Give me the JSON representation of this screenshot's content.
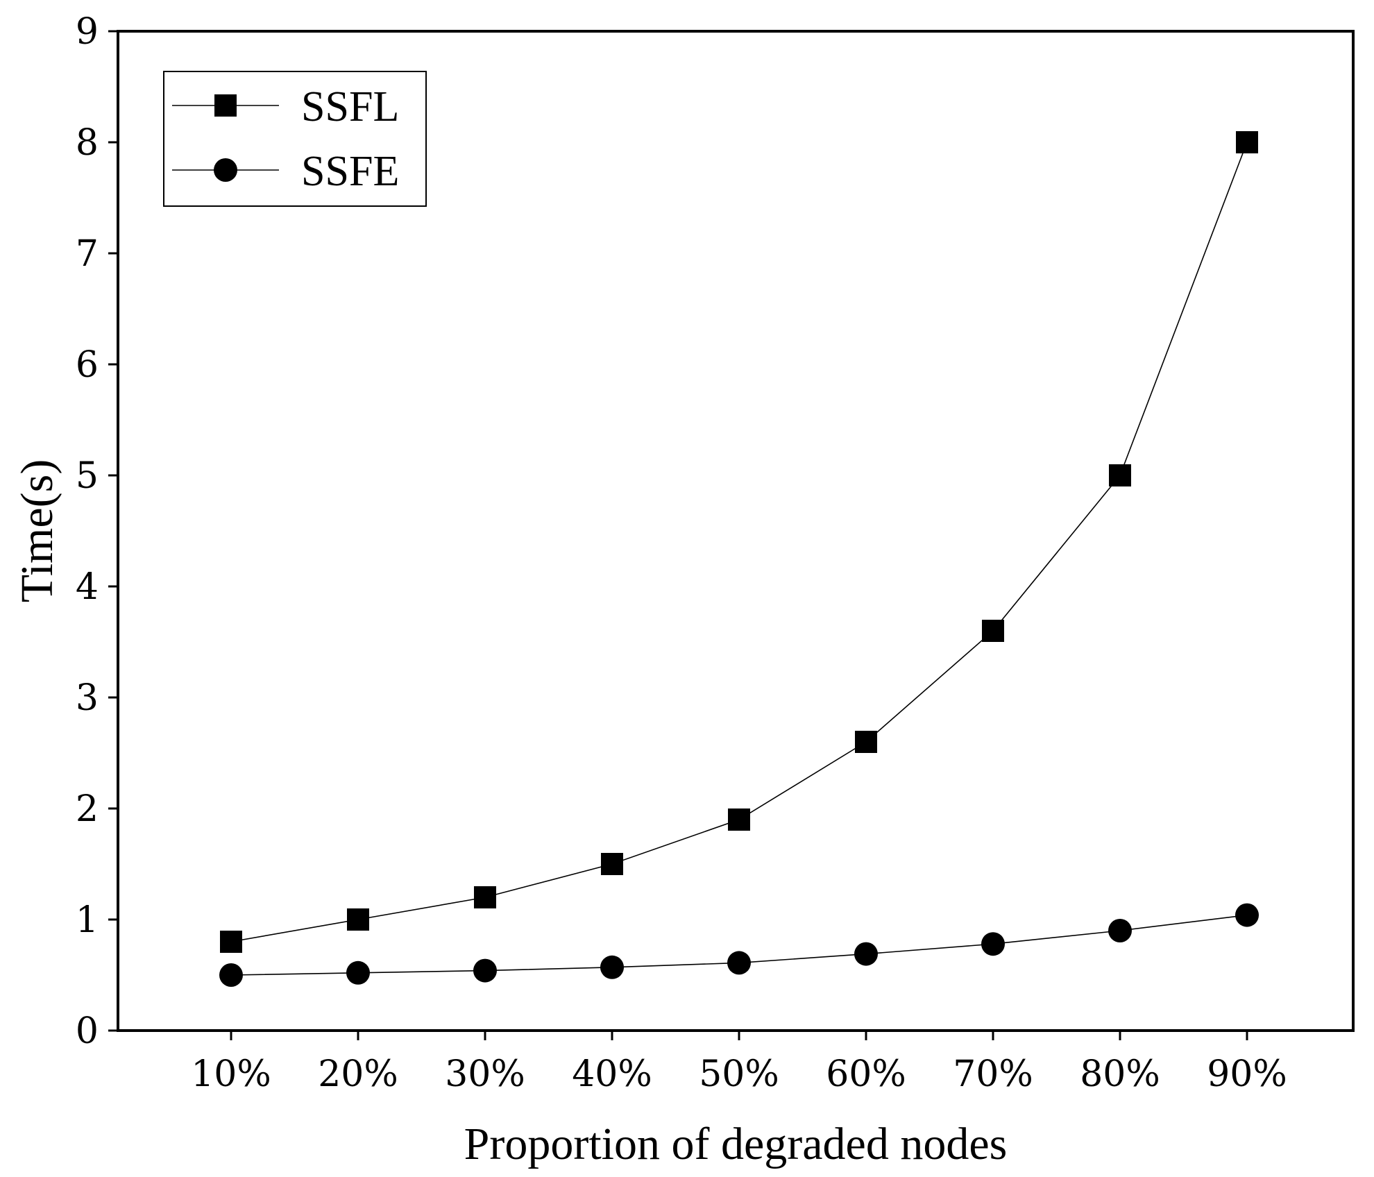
{
  "chart_data": {
    "type": "line",
    "title": "",
    "xlabel": "Proportion of degraded nodes",
    "ylabel": "Time(s)",
    "categories": [
      "10%",
      "20%",
      "30%",
      "40%",
      "50%",
      "60%",
      "70%",
      "80%",
      "90%"
    ],
    "yticks": [
      "0",
      "1",
      "2",
      "3",
      "4",
      "5",
      "6",
      "7",
      "8",
      "9"
    ],
    "ylim": [
      0,
      9
    ],
    "grid": false,
    "legend_position": "top-left",
    "series": [
      {
        "name": "SSFL",
        "marker": "square",
        "color": "#000000",
        "values": [
          0.8,
          1.0,
          1.2,
          1.5,
          1.9,
          2.6,
          3.6,
          5.0,
          8.0
        ]
      },
      {
        "name": "SSFE",
        "marker": "circle",
        "color": "#000000",
        "values": [
          0.5,
          0.52,
          0.54,
          0.57,
          0.61,
          0.69,
          0.78,
          0.9,
          1.04
        ]
      }
    ]
  }
}
